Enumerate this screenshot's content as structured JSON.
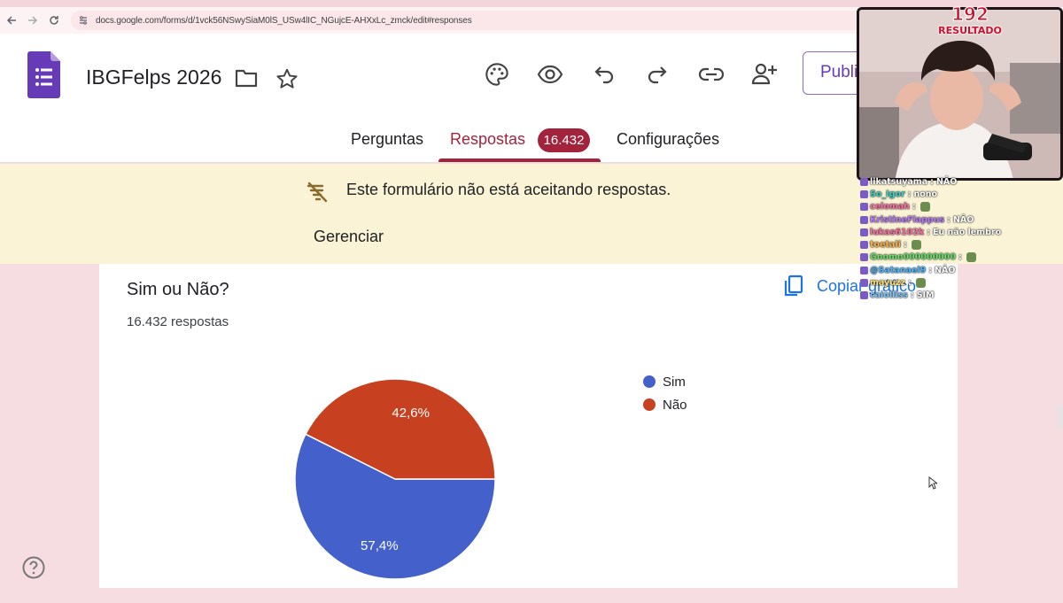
{
  "browser": {
    "url": "docs.google.com/forms/d/1vck56NSwySiaM0lS_USw4lIC_NGujcE-AHXxLc_zmck/edit#responses"
  },
  "header": {
    "title": "IBGFelps 2026",
    "publish_label": "Publi"
  },
  "tabs": [
    {
      "label": "Perguntas"
    },
    {
      "label": "Respostas",
      "badge": "16.432"
    },
    {
      "label": "Configurações"
    }
  ],
  "notice": {
    "text": "Este formulário não está aceitando respostas.",
    "action": "Gerenciar"
  },
  "card": {
    "question": "Sim ou Não?",
    "response_count": "16.432 respostas",
    "copy_label": "Copiar gráfico"
  },
  "chart_data": {
    "type": "pie",
    "categories": [
      "Sim",
      "Não"
    ],
    "values": [
      57.4,
      42.6
    ],
    "labels": [
      "57,4%",
      "42,6%"
    ],
    "colors": [
      "#4360cb",
      "#c74121"
    ],
    "legend": "right"
  },
  "overlay": {
    "counter": "192",
    "counter_label": "RESULTADO",
    "chat": [
      {
        "user": "likatsuyama",
        "msg": "NÃO"
      },
      {
        "user": "So_Igor",
        "msg": "nono"
      },
      {
        "user": "celomah",
        "msg": ""
      },
      {
        "user": "KristineFlappus",
        "msg": "NÃO"
      },
      {
        "user": "lukas6102k",
        "msg": "Eu não lembro"
      },
      {
        "user": "toetali",
        "msg": ""
      },
      {
        "user": "Gnomo000000000",
        "msg": ""
      },
      {
        "user": "@Satanael9",
        "msg": "NÃO"
      },
      {
        "user": "mayuzz",
        "msg": ""
      },
      {
        "user": "caiolliss",
        "msg": "SIM"
      }
    ]
  },
  "colors": {
    "accent": "#a3233d",
    "forms_purple": "#673ab7",
    "notice_bg": "#fbf3d5",
    "link_blue": "#1a73e8"
  }
}
